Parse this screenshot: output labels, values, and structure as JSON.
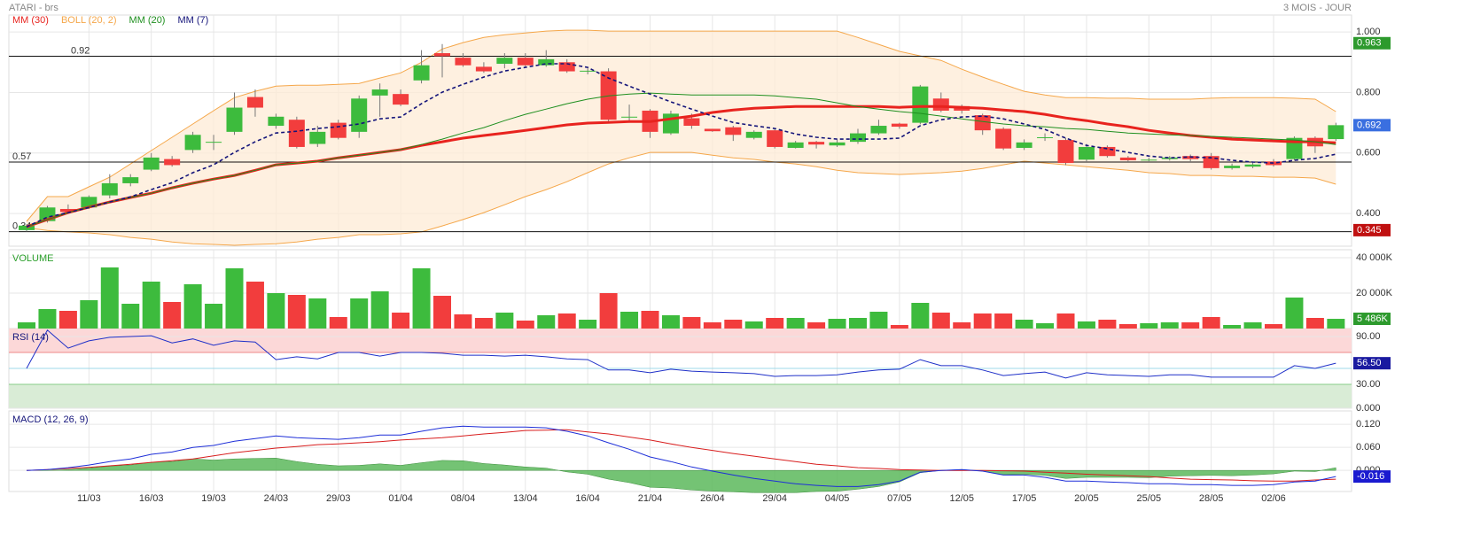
{
  "header": {
    "title": "ATARI - brs",
    "period": "3 MOIS - JOUR"
  },
  "chart_data": [
    {
      "type": "candlestick",
      "categories": [
        null,
        null,
        null,
        "11/03",
        null,
        null,
        "16/03",
        null,
        null,
        "19/03",
        null,
        null,
        "24/03",
        null,
        null,
        "29/03",
        null,
        null,
        "01/04",
        null,
        null,
        "08/04",
        null,
        null,
        "13/04",
        null,
        null,
        "16/04",
        null,
        null,
        "21/04",
        null,
        null,
        "26/04",
        null,
        null,
        "29/04",
        null,
        null,
        "04/05",
        null,
        null,
        "07/05",
        null,
        null,
        "12/05",
        null,
        null,
        "17/05",
        null,
        null,
        "20/05",
        null,
        null,
        "25/05",
        null,
        null,
        "28/05",
        null,
        null,
        "02/06",
        null,
        null,
        null
      ],
      "open": [
        0.345,
        0.375,
        0.415,
        0.42,
        0.46,
        0.5,
        0.545,
        0.58,
        0.61,
        0.635,
        0.67,
        0.785,
        0.69,
        0.71,
        0.63,
        0.7,
        0.67,
        0.79,
        0.795,
        0.84,
        0.93,
        0.915,
        0.885,
        0.895,
        0.915,
        0.89,
        0.9,
        0.87,
        0.87,
        0.72,
        0.74,
        0.665,
        0.715,
        0.68,
        0.685,
        0.65,
        0.675,
        0.617,
        0.637,
        0.625,
        0.637,
        0.665,
        0.697,
        0.7,
        0.78,
        0.755,
        0.725,
        0.68,
        0.617,
        0.652,
        0.643,
        0.578,
        0.62,
        0.585,
        0.577,
        0.58,
        0.59,
        0.59,
        0.55,
        0.555,
        0.572,
        0.58,
        0.65,
        0.646
      ],
      "high": [
        0.365,
        0.425,
        0.43,
        0.46,
        0.53,
        0.53,
        0.6,
        0.59,
        0.67,
        0.66,
        0.8,
        0.81,
        0.73,
        0.72,
        0.69,
        0.71,
        0.79,
        0.83,
        0.81,
        0.94,
        0.96,
        0.93,
        0.9,
        0.93,
        0.93,
        0.94,
        0.91,
        0.88,
        0.88,
        0.76,
        0.745,
        0.74,
        0.73,
        0.68,
        0.69,
        0.675,
        0.68,
        0.64,
        0.64,
        0.645,
        0.68,
        0.71,
        0.7,
        0.825,
        0.8,
        0.76,
        0.73,
        0.685,
        0.645,
        0.665,
        0.65,
        0.63,
        0.625,
        0.59,
        0.585,
        0.59,
        0.595,
        0.6,
        0.565,
        0.57,
        0.58,
        0.655,
        0.655,
        0.7
      ],
      "low": [
        0.34,
        0.37,
        0.4,
        0.415,
        0.45,
        0.49,
        0.54,
        0.555,
        0.6,
        0.61,
        0.66,
        0.72,
        0.68,
        0.615,
        0.62,
        0.645,
        0.65,
        0.72,
        0.755,
        0.83,
        0.85,
        0.885,
        0.865,
        0.88,
        0.885,
        0.885,
        0.865,
        0.86,
        0.705,
        0.7,
        0.65,
        0.66,
        0.68,
        0.67,
        0.64,
        0.645,
        0.615,
        0.615,
        0.615,
        0.62,
        0.63,
        0.66,
        0.68,
        0.695,
        0.735,
        0.73,
        0.66,
        0.61,
        0.61,
        0.64,
        0.56,
        0.57,
        0.585,
        0.57,
        0.57,
        0.575,
        0.57,
        0.545,
        0.545,
        0.55,
        0.555,
        0.575,
        0.6,
        0.64
      ],
      "close": [
        0.36,
        0.42,
        0.405,
        0.455,
        0.5,
        0.52,
        0.585,
        0.56,
        0.66,
        0.637,
        0.75,
        0.75,
        0.72,
        0.62,
        0.67,
        0.65,
        0.78,
        0.81,
        0.76,
        0.89,
        0.92,
        0.89,
        0.87,
        0.915,
        0.89,
        0.91,
        0.87,
        0.872,
        0.71,
        0.72,
        0.67,
        0.73,
        0.69,
        0.672,
        0.66,
        0.67,
        0.62,
        0.635,
        0.628,
        0.635,
        0.665,
        0.69,
        0.687,
        0.82,
        0.74,
        0.74,
        0.675,
        0.615,
        0.635,
        0.652,
        0.567,
        0.62,
        0.59,
        0.576,
        0.578,
        0.585,
        0.58,
        0.55,
        0.558,
        0.562,
        0.56,
        0.65,
        0.622,
        0.692
      ],
      "up_color": "#3dbb3d",
      "down_color": "#f23d3d",
      "series": [
        {
          "name": "MM (30)",
          "color": "#e8231e",
          "values": [
            0.356,
            0.38,
            0.403,
            0.421,
            0.438,
            0.453,
            0.467,
            0.485,
            0.5,
            0.514,
            0.526,
            0.543,
            0.561,
            0.567,
            0.573,
            0.584,
            0.593,
            0.602,
            0.611,
            0.625,
            0.637,
            0.649,
            0.658,
            0.666,
            0.675,
            0.684,
            0.693,
            0.699,
            0.701,
            0.704,
            0.704,
            0.713,
            0.722,
            0.734,
            0.742,
            0.748,
            0.751,
            0.754,
            0.754,
            0.754,
            0.754,
            0.754,
            0.751,
            0.754,
            0.754,
            0.751,
            0.748,
            0.742,
            0.737,
            0.728,
            0.716,
            0.707,
            0.696,
            0.687,
            0.675,
            0.666,
            0.658,
            0.652,
            0.646,
            0.643,
            0.64,
            0.637,
            0.637,
            0.634
          ]
        },
        {
          "name": "BOLL (20, 2)",
          "color": "#f5a74a",
          "fill": "#fdebd6",
          "upper": [
            0.374,
            0.456,
            0.456,
            0.488,
            0.52,
            0.564,
            0.608,
            0.652,
            0.696,
            0.74,
            0.783,
            0.804,
            0.821,
            0.824,
            0.824,
            0.827,
            0.83,
            0.848,
            0.865,
            0.9,
            0.944,
            0.965,
            0.982,
            0.991,
            0.997,
            1.003,
            1.006,
            1.006,
            1.003,
            1.003,
            1.003,
            1.003,
            1.003,
            1.003,
            1.003,
            1.003,
            1.003,
            1.003,
            1.003,
            1.003,
            0.982,
            0.959,
            0.936,
            0.921,
            0.906,
            0.877,
            0.851,
            0.827,
            0.804,
            0.792,
            0.783,
            0.783,
            0.781,
            0.781,
            0.778,
            0.778,
            0.778,
            0.781,
            0.783,
            0.783,
            0.783,
            0.781,
            0.778,
            0.737
          ],
          "lower": [
            0.353,
            0.344,
            0.339,
            0.336,
            0.33,
            0.321,
            0.315,
            0.306,
            0.3,
            0.298,
            0.295,
            0.298,
            0.3,
            0.306,
            0.315,
            0.321,
            0.33,
            0.33,
            0.333,
            0.339,
            0.359,
            0.38,
            0.403,
            0.429,
            0.456,
            0.479,
            0.505,
            0.535,
            0.564,
            0.584,
            0.602,
            0.602,
            0.602,
            0.593,
            0.584,
            0.579,
            0.57,
            0.564,
            0.555,
            0.543,
            0.535,
            0.532,
            0.529,
            0.532,
            0.535,
            0.54,
            0.549,
            0.561,
            0.573,
            0.567,
            0.561,
            0.555,
            0.549,
            0.543,
            0.535,
            0.532,
            0.526,
            0.526,
            0.523,
            0.523,
            0.52,
            0.52,
            0.517,
            0.497
          ]
        },
        {
          "name": "MM (20)",
          "color": "#1f8f1f",
          "values": [
            0.356,
            0.38,
            0.403,
            0.421,
            0.438,
            0.453,
            0.467,
            0.485,
            0.5,
            0.514,
            0.526,
            0.543,
            0.561,
            0.567,
            0.573,
            0.584,
            0.593,
            0.602,
            0.611,
            0.628,
            0.646,
            0.666,
            0.684,
            0.707,
            0.728,
            0.745,
            0.763,
            0.778,
            0.789,
            0.795,
            0.798,
            0.795,
            0.792,
            0.792,
            0.792,
            0.792,
            0.789,
            0.783,
            0.778,
            0.766,
            0.754,
            0.745,
            0.737,
            0.731,
            0.722,
            0.713,
            0.704,
            0.696,
            0.69,
            0.687,
            0.681,
            0.678,
            0.672,
            0.666,
            0.663,
            0.66,
            0.658,
            0.655,
            0.652,
            0.649,
            0.646,
            0.643,
            0.637,
            0.628
          ]
        },
        {
          "name": "MM (7)",
          "color": "#14147a",
          "dash": true,
          "values": [
            0.356,
            0.388,
            0.403,
            0.42,
            0.438,
            0.455,
            0.479,
            0.502,
            0.535,
            0.561,
            0.602,
            0.637,
            0.666,
            0.672,
            0.681,
            0.687,
            0.696,
            0.713,
            0.719,
            0.763,
            0.801,
            0.827,
            0.851,
            0.871,
            0.883,
            0.895,
            0.895,
            0.883,
            0.848,
            0.821,
            0.795,
            0.769,
            0.745,
            0.722,
            0.701,
            0.69,
            0.681,
            0.663,
            0.652,
            0.646,
            0.646,
            0.646,
            0.649,
            0.69,
            0.71,
            0.719,
            0.722,
            0.713,
            0.696,
            0.678,
            0.649,
            0.625,
            0.614,
            0.602,
            0.59,
            0.584,
            0.587,
            0.584,
            0.576,
            0.57,
            0.567,
            0.576,
            0.582,
            0.596
          ]
        }
      ],
      "ylim": [
        0.292,
        1.056
      ],
      "yticks": [
        {
          "value": 0.4,
          "label": "0.400"
        },
        {
          "value": 0.6,
          "label": "0.600"
        },
        {
          "value": 0.8,
          "label": "0.800"
        },
        {
          "value": 1.0,
          "label": "1.000"
        }
      ],
      "hlines": [
        0.92,
        0.57,
        0.34
      ],
      "badges": [
        {
          "value": 0.963,
          "color": "#2d9a2d"
        },
        {
          "value": 0.692,
          "color": "#3a6fe0"
        },
        {
          "value": 0.345,
          "color": "#c01010"
        }
      ],
      "grid": true
    },
    {
      "type": "bar",
      "title": "VOLUME",
      "title_color": "#2ca02c",
      "values": [
        3500,
        11000,
        10000,
        16000,
        34500,
        14000,
        26500,
        15000,
        25000,
        14000,
        34000,
        26500,
        20000,
        19000,
        17000,
        6500,
        17000,
        21000,
        9000,
        34000,
        18500,
        8000,
        6000,
        9000,
        4500,
        7500,
        8500,
        5000,
        20000,
        9500,
        10000,
        7500,
        6500,
        3500,
        5000,
        4000,
        6000,
        6000,
        3500,
        5500,
        6000,
        9500,
        2000,
        14500,
        9000,
        3500,
        8500,
        8500,
        5000,
        3000,
        8500,
        4000,
        5000,
        2500,
        3000,
        3500,
        3500,
        6500,
        2000,
        3500,
        2500,
        17500,
        6000,
        5486
      ],
      "ylim": [
        0,
        44500
      ],
      "yticks": [
        {
          "value": 20000,
          "label": "20 000K"
        },
        {
          "value": 40000,
          "label": "40 000K"
        }
      ],
      "badges": [
        {
          "value": 5486,
          "label": "5 486K",
          "color": "#2d9a2d"
        }
      ],
      "grid": true
    },
    {
      "type": "line",
      "title": "RSI (14)",
      "title_color": "#14147a",
      "color": "#1e2fc8",
      "values": [
        50,
        98,
        75.5,
        84.5,
        89,
        90,
        91,
        82,
        87,
        79,
        84.5,
        83,
        61,
        64.5,
        62,
        70,
        70,
        65.5,
        70,
        70,
        69,
        66.5,
        66.5,
        65.5,
        66.5,
        64.5,
        62,
        61,
        48,
        48,
        44.5,
        49,
        46.5,
        45.5,
        44.5,
        43.5,
        40,
        41,
        41,
        42,
        45.5,
        48,
        49,
        61,
        53.5,
        53.5,
        48,
        41,
        43.5,
        45.5,
        38,
        44.5,
        42,
        41,
        40,
        42,
        42,
        39,
        39,
        39,
        39,
        53.5,
        50,
        56.5
      ],
      "ylim": [
        0,
        100
      ],
      "yticks": [
        {
          "value": 0,
          "label": "0.000"
        },
        {
          "value": 30,
          "label": "30.00"
        },
        {
          "value": 90,
          "label": "90.00"
        }
      ],
      "zones": [
        {
          "range": [
            70,
            100
          ],
          "color": "#fcd8d8"
        },
        {
          "range": [
            0,
            30
          ],
          "color": "#d9ecd6"
        }
      ],
      "midline": 50,
      "badges": [
        {
          "value": 56.5,
          "label": "56.50",
          "color": "#1a1aa0"
        }
      ],
      "grid": true
    },
    {
      "type": "macd",
      "title": "MACD (12, 26, 9)",
      "title_color": "#14147a",
      "macd": {
        "color": "#1e2fd8",
        "values": [
          0,
          0.002,
          0.007,
          0.014,
          0.023,
          0.03,
          0.042,
          0.048,
          0.06,
          0.065,
          0.076,
          0.083,
          0.09,
          0.085,
          0.083,
          0.081,
          0.085,
          0.092,
          0.092,
          0.102,
          0.111,
          0.115,
          0.113,
          0.113,
          0.113,
          0.111,
          0.102,
          0.09,
          0.072,
          0.055,
          0.035,
          0.023,
          0.009,
          -0.002,
          -0.012,
          -0.021,
          -0.028,
          -0.035,
          -0.039,
          -0.042,
          -0.042,
          -0.037,
          -0.028,
          -0.005,
          0,
          0.002,
          -0.002,
          -0.012,
          -0.012,
          -0.018,
          -0.028,
          -0.028,
          -0.03,
          -0.032,
          -0.035,
          -0.035,
          -0.037,
          -0.037,
          -0.039,
          -0.039,
          -0.037,
          -0.03,
          -0.028,
          -0.016
        ]
      },
      "signal": {
        "color": "#d81e1e",
        "values": [
          0,
          0.002,
          0.005,
          0.008,
          0.012,
          0.016,
          0.021,
          0.025,
          0.03,
          0.038,
          0.046,
          0.052,
          0.058,
          0.062,
          0.067,
          0.069,
          0.072,
          0.075,
          0.079,
          0.082,
          0.085,
          0.09,
          0.095,
          0.099,
          0.104,
          0.105,
          0.106,
          0.1,
          0.095,
          0.087,
          0.079,
          0.069,
          0.06,
          0.052,
          0.044,
          0.037,
          0.03,
          0.023,
          0.016,
          0.012,
          0.007,
          0.005,
          0.002,
          0.001,
          0,
          0,
          0,
          -0.001,
          -0.002,
          -0.005,
          -0.007,
          -0.01,
          -0.012,
          -0.014,
          -0.016,
          -0.02,
          -0.023,
          -0.024,
          -0.025,
          -0.027,
          -0.028,
          -0.028,
          -0.025,
          -0.023
        ]
      },
      "histogram": {
        "color": "#5cb85c",
        "values": [
          0,
          0,
          0.002,
          0.006,
          0.011,
          0.014,
          0.021,
          0.023,
          0.03,
          0.027,
          0.03,
          0.031,
          0.032,
          0.023,
          0.016,
          0.012,
          0.013,
          0.017,
          0.013,
          0.02,
          0.026,
          0.025,
          0.018,
          0.014,
          0.009,
          0.006,
          -0.004,
          -0.01,
          -0.023,
          -0.032,
          -0.044,
          -0.046,
          -0.051,
          -0.054,
          -0.056,
          -0.058,
          -0.058,
          -0.058,
          -0.055,
          -0.054,
          -0.049,
          -0.042,
          -0.03,
          -0.006,
          0,
          0.002,
          -0.002,
          -0.011,
          -0.01,
          -0.013,
          -0.021,
          -0.018,
          -0.018,
          -0.018,
          -0.019,
          -0.015,
          -0.014,
          -0.013,
          -0.014,
          -0.012,
          -0.009,
          -0.002,
          -0.003,
          0.007
        ]
      },
      "ylim": [
        -0.055,
        0.155
      ],
      "yticks": [
        {
          "value": 0,
          "label": "0.000"
        },
        {
          "value": 0.06,
          "label": "0.060"
        },
        {
          "value": 0.12,
          "label": "0.120"
        }
      ],
      "badges": [
        {
          "value": -0.016,
          "color": "#1a1ad0"
        }
      ],
      "grid": true
    }
  ]
}
